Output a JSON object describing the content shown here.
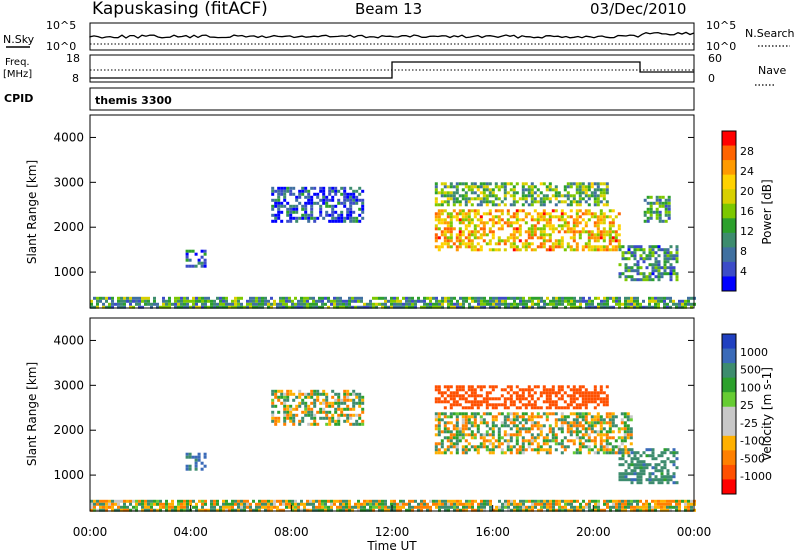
{
  "header": {
    "station": "Kapuskasing (fitACF)",
    "beam": "Beam 13",
    "date": "03/Dec/2010"
  },
  "status": {
    "nsky_label": "N.Sky",
    "nsearch_label": "N.Search",
    "nsky_ticks": [
      "10^5",
      "10^0"
    ],
    "nsearch_ticks": [
      "10^5",
      "10^0"
    ],
    "freq_label": "Freq.",
    "freq_unit": "[MHz]",
    "freq_ticks": [
      "18",
      "8"
    ],
    "nave_label": "Nave",
    "nave_ticks": [
      "60",
      "0"
    ],
    "cpid_label": "CPID",
    "cpid_value": "themis 3300"
  },
  "chart_data": [
    {
      "type": "heatmap",
      "parameter": "Power",
      "ylabel": "Slant Range [km]",
      "xlabel": "",
      "colorbar_label": "Power [dB]",
      "colorbar_ticks": [
        "28",
        "24",
        "20",
        "16",
        "12",
        "8",
        "4"
      ],
      "colorbar_colors": [
        "#ff0000",
        "#ff6400",
        "#ff9a00",
        "#ffd200",
        "#d8d000",
        "#7cc800",
        "#2ca02c",
        "#3d8c6e",
        "#4070a0",
        "#3c4cc8",
        "#0000ff"
      ],
      "ylim": [
        200,
        4500
      ],
      "yticks": [
        "4000",
        "3000",
        "2000",
        "1000"
      ],
      "xlim": [
        0,
        24
      ],
      "regions": [
        {
          "t0": 7.2,
          "t1": 10.8,
          "r0": 2100,
          "r1": 2900,
          "value": 6
        },
        {
          "t0": 3.8,
          "t1": 4.6,
          "r0": 1100,
          "r1": 1500,
          "value": 8
        },
        {
          "t0": 13.7,
          "t1": 21.0,
          "r0": 1500,
          "r1": 2400,
          "value": 22
        },
        {
          "t0": 13.7,
          "t1": 20.6,
          "r0": 2500,
          "r1": 3000,
          "value": 14
        },
        {
          "t0": 21.0,
          "t1": 23.3,
          "r0": 800,
          "r1": 1600,
          "value": 10
        },
        {
          "t0": 22.0,
          "t1": 23.0,
          "r0": 2100,
          "r1": 2700,
          "value": 12
        },
        {
          "t0": 0.0,
          "t1": 24.0,
          "r0": 200,
          "r1": 450,
          "value": 12
        }
      ]
    },
    {
      "type": "heatmap",
      "parameter": "Velocity",
      "ylabel": "Slant Range [km]",
      "xlabel": "Time UT",
      "colorbar_label": "Velocity [m s-1]",
      "colorbar_ticks": [
        "1000",
        "500",
        "100",
        "25",
        "-25",
        "-100",
        "-500",
        "-1000"
      ],
      "colorbar_colors": [
        "#2040c0",
        "#3a6ab8",
        "#3d8c6e",
        "#2ca02c",
        "#66cc33",
        "#c8c8c8",
        "#c8c8c8",
        "#ffb000",
        "#ff8000",
        "#ff5000",
        "#ff0000"
      ],
      "ylim": [
        200,
        4500
      ],
      "yticks": [
        "4000",
        "3000",
        "2000",
        "1000"
      ],
      "xlim": [
        0,
        24
      ],
      "xticks": [
        "00:00",
        "04:00",
        "08:00",
        "12:00",
        "16:00",
        "20:00",
        "00:00"
      ],
      "regions": [
        {
          "t0": 7.2,
          "t1": 10.8,
          "r0": 2100,
          "r1": 2900,
          "value": 0
        },
        {
          "t0": 3.8,
          "t1": 4.6,
          "r0": 1100,
          "r1": 1500,
          "value": 150
        },
        {
          "t0": 13.7,
          "t1": 21.5,
          "r0": 1500,
          "r1": 2400,
          "value": 0
        },
        {
          "t0": 13.7,
          "t1": 20.6,
          "r0": 2500,
          "r1": 3000,
          "value": -300
        },
        {
          "t0": 21.0,
          "t1": 23.3,
          "r0": 800,
          "r1": 1600,
          "value": 80
        },
        {
          "t0": 0.0,
          "t1": 24.0,
          "r0": 200,
          "r1": 450,
          "value": 0
        }
      ]
    }
  ]
}
